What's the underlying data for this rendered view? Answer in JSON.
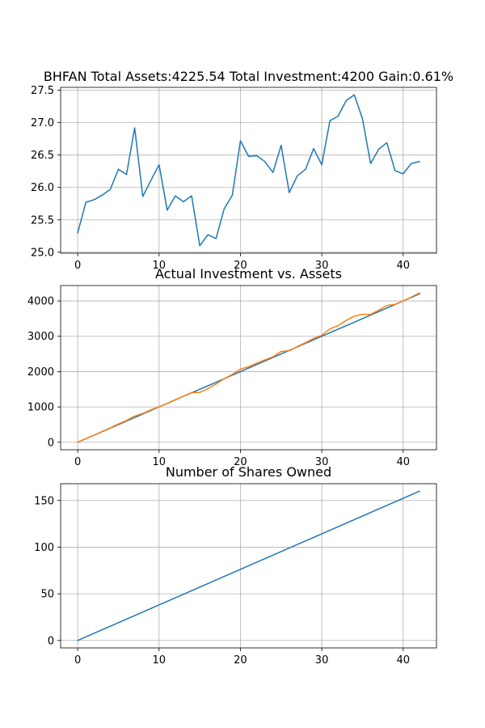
{
  "chart_data": [
    {
      "type": "line",
      "title": "BHFAN Total Assets:4225.54  Total Investment:4200  Gain:0.61%",
      "xlabel": "",
      "ylabel": "",
      "xlim": [
        -2.1,
        44.1
      ],
      "ylim": [
        24.985,
        27.545
      ],
      "xticks": [
        0,
        10,
        20,
        30,
        40
      ],
      "yticks": [
        25.0,
        25.5,
        26.0,
        26.5,
        27.0,
        27.5
      ],
      "ytick_labels": [
        "25.0",
        "25.5",
        "26.0",
        "26.5",
        "27.0",
        "27.5"
      ],
      "grid": true,
      "series": [
        {
          "color": "#1f77b4",
          "x": [
            0,
            1,
            2,
            3,
            4,
            5,
            6,
            7,
            8,
            9,
            10,
            11,
            12,
            13,
            14,
            15,
            16,
            17,
            18,
            19,
            20,
            21,
            22,
            23,
            24,
            25,
            26,
            27,
            28,
            29,
            30,
            31,
            32,
            33,
            34,
            35,
            36,
            37,
            38,
            39,
            40,
            41,
            42
          ],
          "values": [
            25.3,
            25.77,
            25.81,
            25.88,
            25.97,
            26.28,
            26.2,
            26.92,
            25.86,
            26.11,
            26.35,
            25.65,
            25.87,
            25.78,
            25.87,
            25.1,
            25.27,
            25.21,
            25.67,
            25.88,
            26.72,
            26.48,
            26.49,
            26.4,
            26.23,
            26.65,
            25.92,
            26.18,
            26.28,
            26.6,
            26.35,
            27.03,
            27.1,
            27.34,
            27.43,
            27.06,
            26.37,
            26.59,
            26.69,
            26.26,
            26.21,
            26.37,
            26.4
          ]
        }
      ]
    },
    {
      "type": "line",
      "title": "Actual Investment vs. Assets",
      "xlabel": "",
      "ylabel": "",
      "xlim": [
        -2.1,
        44.1
      ],
      "ylim": [
        -211,
        4436
      ],
      "xticks": [
        0,
        10,
        20,
        30,
        40
      ],
      "yticks": [
        0,
        1000,
        2000,
        3000,
        4000
      ],
      "ytick_labels": [
        "0",
        "1000",
        "2000",
        "3000",
        "4000"
      ],
      "grid": true,
      "series": [
        {
          "color": "#1f77b4",
          "x": [
            0,
            1,
            2,
            3,
            4,
            5,
            6,
            7,
            8,
            9,
            10,
            11,
            12,
            13,
            14,
            15,
            16,
            17,
            18,
            19,
            20,
            21,
            22,
            23,
            24,
            25,
            26,
            27,
            28,
            29,
            30,
            31,
            32,
            33,
            34,
            35,
            36,
            37,
            38,
            39,
            40,
            41,
            42
          ],
          "values": [
            0,
            100,
            200,
            300,
            400,
            500,
            600,
            700,
            800,
            900,
            1000,
            1100,
            1200,
            1300,
            1400,
            1500,
            1600,
            1700,
            1800,
            1900,
            2000,
            2100,
            2200,
            2300,
            2400,
            2500,
            2600,
            2700,
            2800,
            2900,
            3000,
            3100,
            3200,
            3300,
            3400,
            3500,
            3600,
            3700,
            3800,
            3900,
            4000,
            4100,
            4200
          ]
        },
        {
          "color": "#ff7f0e",
          "x": [
            0,
            1,
            2,
            3,
            4,
            5,
            6,
            7,
            8,
            9,
            10,
            11,
            12,
            13,
            14,
            15,
            16,
            17,
            18,
            19,
            20,
            21,
            22,
            23,
            24,
            25,
            26,
            27,
            28,
            29,
            30,
            31,
            32,
            33,
            34,
            35,
            36,
            37,
            38,
            39,
            40,
            41,
            42
          ],
          "values": [
            0,
            102,
            203,
            305,
            408,
            520,
            617,
            740,
            816,
            919,
            1004,
            1100,
            1208,
            1303,
            1409,
            1410,
            1520,
            1650,
            1800,
            1920,
            2070,
            2140,
            2240,
            2330,
            2420,
            2570,
            2590,
            2710,
            2820,
            2940,
            3030,
            3210,
            3300,
            3450,
            3570,
            3620,
            3620,
            3740,
            3870,
            3900,
            4000,
            4110,
            4225.54
          ]
        }
      ]
    },
    {
      "type": "line",
      "title": "Number of Shares Owned",
      "xlabel": "",
      "ylabel": "",
      "xlim": [
        -2.1,
        44.1
      ],
      "ylim": [
        -8,
        168
      ],
      "xticks": [
        0,
        10,
        20,
        30,
        40
      ],
      "yticks": [
        0,
        50,
        100,
        150
      ],
      "ytick_labels": [
        "0",
        "50",
        "100",
        "150"
      ],
      "grid": true,
      "series": [
        {
          "color": "#1f77b4",
          "x": [
            0,
            42
          ],
          "values": [
            0,
            160
          ]
        }
      ]
    }
  ]
}
